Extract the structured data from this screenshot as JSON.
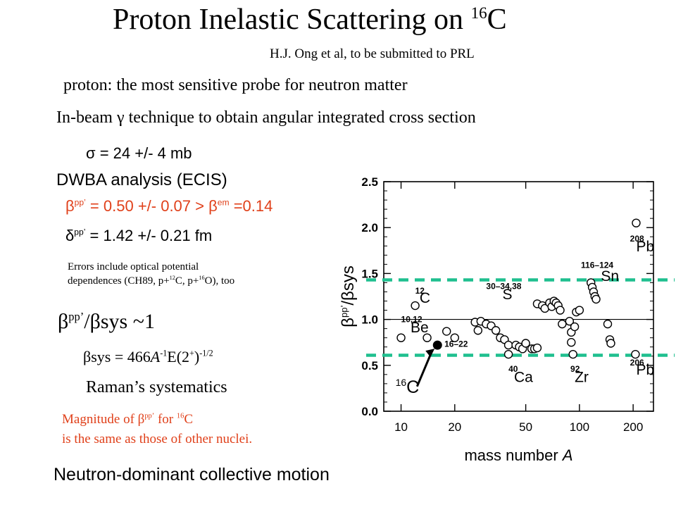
{
  "slide": {
    "title": "Proton Inelastic Scattering on",
    "title_sup": "16",
    "title_tail": "C",
    "citation": "H.J. Ong et al, to be submitted to PRL",
    "line1": "proton: the most sensitive probe for neutron matter",
    "line2": "In-beam γ technique to obtain angular integrated cross section",
    "sigma": "σ = 24 +/- 4 mb",
    "dwba": "DWBA analysis (ECIS)",
    "beta_pp_sym": "β",
    "beta_pp_sup": "pp’",
    "beta_pp_val": "= 0.50 +/- 0.07 > β",
    "beta_em_sup": "em",
    "beta_em_val": "=0.14",
    "delta_sym": "δ",
    "delta_sup": "pp’",
    "delta_val": "= 1.42 +/- 0.21 fm",
    "errors_1": "Errors include optical potential",
    "errors_2a": "dependences (CH89, p+",
    "errors_2b": "12",
    "errors_2c": "C, p+",
    "errors_2d": "16",
    "errors_2e": "O), too",
    "ratio_beta": "β",
    "ratio_sup": "pp’",
    "ratio_tail": "/βsys ~1",
    "bsys_a": "βsys = 466",
    "bsys_A": "A",
    "bsys_m1": "-1",
    "bsys_b": "E(2",
    "bsys_plus": "+",
    "bsys_c": ")",
    "bsys_half": "-1/2",
    "raman": "Raman’s systematics",
    "mag_1a": "Magnitude of β",
    "mag_1b": "pp’",
    "mag_1c": " for ",
    "mag_1d": "16",
    "mag_1e": "C",
    "mag_2": "is the same as those of other nuclei.",
    "neutron": "Neutron-dominant collective motion"
  },
  "colors": {
    "red_text": "#e0401a",
    "dashed_line": "#1fbf8f"
  },
  "chart_data": {
    "type": "scatter",
    "xscale": "log",
    "xlim": [
      8,
      260
    ],
    "ylim": [
      0.0,
      2.5
    ],
    "xticks": [
      10,
      20,
      50,
      100,
      200
    ],
    "yticks": [
      "0.0",
      "0.5",
      "1.0",
      "1.5",
      "2.0",
      "2.5"
    ],
    "xlabel_a": "mass number ",
    "xlabel_b": "A",
    "ylabel_beta": "β",
    "ylabel_sup": "pp’",
    "ylabel_tail": "/βsys",
    "reference_lines": [
      1.0
    ],
    "dashed_lines": [
      1.43,
      0.61
    ],
    "annotations": [
      {
        "text": "12",
        "x": 12,
        "y": 1.28,
        "kind": "sup"
      },
      {
        "text": "C",
        "x": 12.7,
        "y": 1.18
      },
      {
        "text": "10,12",
        "x": 10,
        "y": 0.97,
        "kind": "sup"
      },
      {
        "text": "Be",
        "x": 11.3,
        "y": 0.86
      },
      {
        "text": "16–22",
        "x": 17.5,
        "y": 0.7,
        "kind": "sup"
      },
      {
        "text": "30–34,38",
        "x": 30,
        "y": 1.33,
        "kind": "sup"
      },
      {
        "text": "S",
        "x": 37,
        "y": 1.22
      },
      {
        "text": "40",
        "x": 40,
        "y": 0.43,
        "kind": "sup"
      },
      {
        "text": "Ca",
        "x": 43,
        "y": 0.32
      },
      {
        "text": "116–124",
        "x": 102,
        "y": 1.56,
        "kind": "sup"
      },
      {
        "text": "Sn",
        "x": 132,
        "y": 1.42
      },
      {
        "text": "92",
        "x": 89,
        "y": 0.43,
        "kind": "sup"
      },
      {
        "text": "Zr",
        "x": 94,
        "y": 0.32
      },
      {
        "text": "208",
        "x": 192,
        "y": 1.85,
        "kind": "sup"
      },
      {
        "text": "Pb",
        "x": 208,
        "y": 1.74
      },
      {
        "text": "206",
        "x": 192,
        "y": 0.5,
        "kind": "sup"
      },
      {
        "text": "Pb",
        "x": 208,
        "y": 0.4
      }
    ],
    "callout_label": "C",
    "callout_sup": "16",
    "highlight": {
      "x": 16,
      "y": 0.72
    },
    "series": [
      {
        "points": [
          [
            10,
            0.8
          ],
          [
            12,
            1.15
          ],
          [
            14,
            0.8
          ],
          [
            18,
            0.87
          ],
          [
            20,
            0.8
          ],
          [
            26,
            0.97
          ],
          [
            27,
            0.88
          ],
          [
            28,
            0.98
          ],
          [
            30,
            0.95
          ],
          [
            32,
            0.93
          ],
          [
            34,
            0.88
          ],
          [
            36,
            0.8
          ],
          [
            38,
            0.78
          ],
          [
            40,
            0.72
          ],
          [
            40,
            0.62
          ],
          [
            44,
            0.72
          ],
          [
            46,
            0.7
          ],
          [
            48,
            0.68
          ],
          [
            50,
            0.74
          ],
          [
            54,
            0.68
          ],
          [
            56,
            0.68
          ],
          [
            58,
            0.69
          ],
          [
            58,
            1.17
          ],
          [
            62,
            1.15
          ],
          [
            64,
            1.12
          ],
          [
            68,
            1.18
          ],
          [
            70,
            1.14
          ],
          [
            72,
            1.2
          ],
          [
            74,
            1.18
          ],
          [
            76,
            1.15
          ],
          [
            78,
            1.1
          ],
          [
            80,
            0.95
          ],
          [
            88,
            0.98
          ],
          [
            90,
            0.86
          ],
          [
            90,
            0.75
          ],
          [
            92,
            0.62
          ],
          [
            94,
            0.92
          ],
          [
            96,
            1.08
          ],
          [
            100,
            1.1
          ],
          [
            116,
            1.4
          ],
          [
            118,
            1.35
          ],
          [
            120,
            1.3
          ],
          [
            122,
            1.25
          ],
          [
            124,
            1.22
          ],
          [
            144,
            0.95
          ],
          [
            148,
            0.78
          ],
          [
            150,
            0.74
          ],
          [
            206,
            0.62
          ],
          [
            208,
            2.05
          ]
        ]
      }
    ]
  }
}
